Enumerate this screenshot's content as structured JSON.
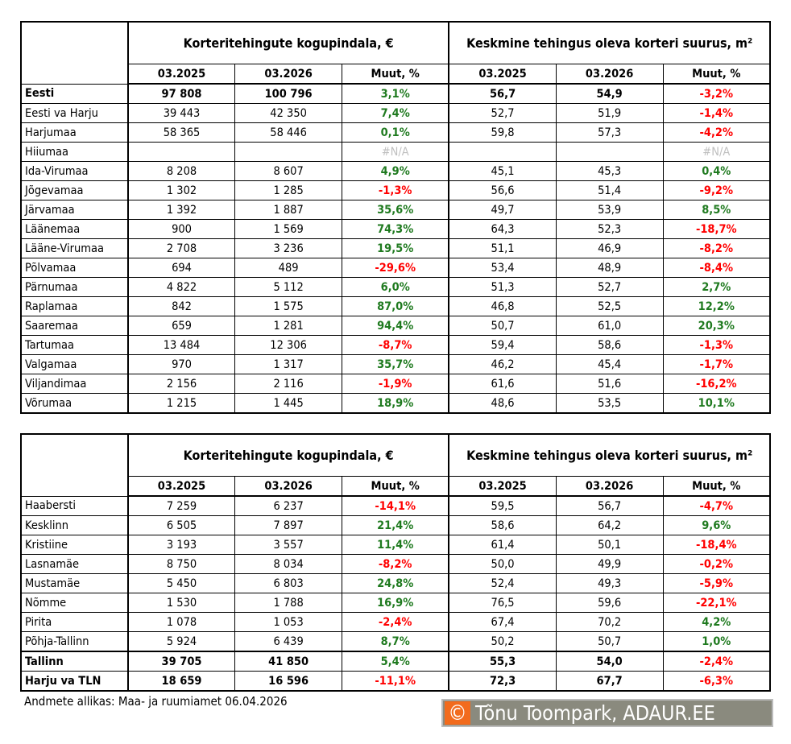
{
  "colors": {
    "positive": "#1f7a1f",
    "negative": "#ff0000",
    "na": "#bfbfbf",
    "logo_bg": "#f26b1d"
  },
  "headers": {
    "group1": "Korteritehingute kogupindala, €",
    "group2": "Keskmine tehingus oleva korteri suurus, m²",
    "col_2025": "03.2025",
    "col_2026": "03.2026",
    "col_change": "Muut, %"
  },
  "table1": [
    [
      "Eesti",
      "97 808",
      "100 796",
      "3,1%",
      "56,7",
      "54,9",
      "-3,2%"
    ],
    [
      "Eesti va Harju",
      "39 443",
      "42 350",
      "7,4%",
      "52,7",
      "51,9",
      "-1,4%"
    ],
    [
      "Harjumaa",
      "58 365",
      "58 446",
      "0,1%",
      "59,8",
      "57,3",
      "-4,2%"
    ],
    [
      "Hiiumaa",
      "",
      "",
      "#N/A",
      "",
      "",
      "#N/A"
    ],
    [
      "Ida-Virumaa",
      "8 208",
      "8 607",
      "4,9%",
      "45,1",
      "45,3",
      "0,4%"
    ],
    [
      "Jõgevamaa",
      "1 302",
      "1 285",
      "-1,3%",
      "56,6",
      "51,4",
      "-9,2%"
    ],
    [
      "Järvamaa",
      "1 392",
      "1 887",
      "35,6%",
      "49,7",
      "53,9",
      "8,5%"
    ],
    [
      "Läänemaa",
      "900",
      "1 569",
      "74,3%",
      "64,3",
      "52,3",
      "-18,7%"
    ],
    [
      "Lääne-Virumaa",
      "2 708",
      "3 236",
      "19,5%",
      "51,1",
      "46,9",
      "-8,2%"
    ],
    [
      "Põlvamaa",
      "694",
      "489",
      "-29,6%",
      "53,4",
      "48,9",
      "-8,4%"
    ],
    [
      "Pärnumaa",
      "4 822",
      "5 112",
      "6,0%",
      "51,3",
      "52,7",
      "2,7%"
    ],
    [
      "Raplamaa",
      "842",
      "1 575",
      "87,0%",
      "46,8",
      "52,5",
      "12,2%"
    ],
    [
      "Saaremaa",
      "659",
      "1 281",
      "94,4%",
      "50,7",
      "61,0",
      "20,3%"
    ],
    [
      "Tartumaa",
      "13 484",
      "12 306",
      "-8,7%",
      "59,4",
      "58,6",
      "-1,3%"
    ],
    [
      "Valgamaa",
      "970",
      "1 317",
      "35,7%",
      "46,2",
      "45,4",
      "-1,7%"
    ],
    [
      "Viljandimaa",
      "2 156",
      "2 116",
      "-1,9%",
      "61,6",
      "51,6",
      "-16,2%"
    ],
    [
      "Võrumaa",
      "1 215",
      "1 445",
      "18,9%",
      "48,6",
      "53,5",
      "10,1%"
    ]
  ],
  "table2": [
    [
      "Haabersti",
      "7 259",
      "6 237",
      "-14,1%",
      "59,5",
      "56,7",
      "-4,7%"
    ],
    [
      "Kesklinn",
      "6 505",
      "7 897",
      "21,4%",
      "58,6",
      "64,2",
      "9,6%"
    ],
    [
      "Kristiine",
      "3 193",
      "3 557",
      "11,4%",
      "61,4",
      "50,1",
      "-18,4%"
    ],
    [
      "Lasnamäe",
      "8 750",
      "8 034",
      "-8,2%",
      "50,0",
      "49,9",
      "-0,2%"
    ],
    [
      "Mustamäe",
      "5 450",
      "6 803",
      "24,8%",
      "52,4",
      "49,3",
      "-5,9%"
    ],
    [
      "Nõmme",
      "1 530",
      "1 788",
      "16,9%",
      "76,5",
      "59,6",
      "-22,1%"
    ],
    [
      "Pirita",
      "1 078",
      "1 053",
      "-2,4%",
      "67,4",
      "70,2",
      "4,2%"
    ],
    [
      "Põhja-Tallinn",
      "5 924",
      "6 439",
      "8,7%",
      "50,2",
      "50,7",
      "1,0%"
    ],
    [
      "Tallinn",
      "39 705",
      "41 850",
      "5,4%",
      "55,3",
      "54,0",
      "-2,4%"
    ],
    [
      "Harju va TLN",
      "18 659",
      "16 596",
      "-11,1%",
      "72,3",
      "67,7",
      "-6,3%"
    ]
  ],
  "footer": {
    "source": "Andmete allikas: Maa- ja ruumiamet 06.04.2026",
    "logo_symbol": "©",
    "logo_text": "Tõnu Toompark, ADAUR.EE"
  }
}
